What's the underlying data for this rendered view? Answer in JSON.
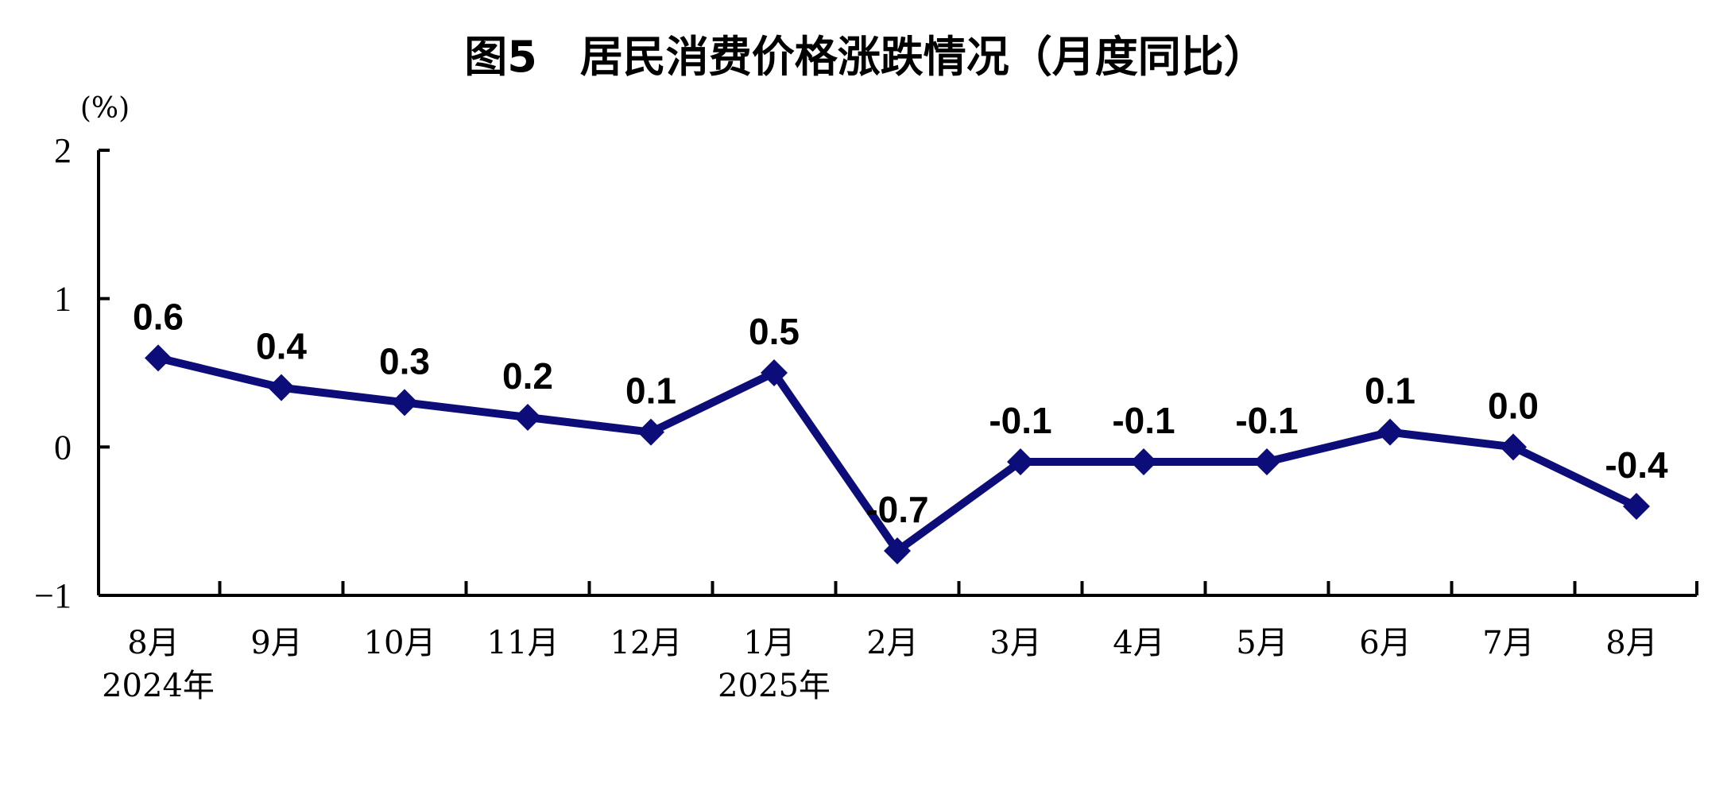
{
  "chart_data": {
    "type": "line",
    "title": "图5　居民消费价格涨跌情况（月度同比）",
    "unit_label": "(%)",
    "categories": [
      "8月",
      "9月",
      "10月",
      "11月",
      "12月",
      "1月",
      "2月",
      "3月",
      "4月",
      "5月",
      "6月",
      "7月",
      "8月"
    ],
    "year_labels": [
      "2024年",
      "",
      "",
      "",
      "",
      "2025年",
      "",
      "",
      "",
      "",
      "",
      "",
      ""
    ],
    "y_ticks": [
      "2",
      "1",
      "0",
      "−1"
    ],
    "ylim": [
      -1,
      2
    ],
    "grid": false,
    "legend": "none",
    "series": [
      {
        "values": [
          0.6,
          0.4,
          0.3,
          0.2,
          0.1,
          0.5,
          -0.7,
          -0.1,
          -0.1,
          -0.1,
          0.1,
          0.0,
          -0.4
        ],
        "labels": [
          "0.6",
          "0.4",
          "0.3",
          "0.2",
          "0.1",
          "0.5",
          "-0.7",
          "-0.1",
          "-0.1",
          "-0.1",
          "0.1",
          "0.0",
          "-0.4"
        ],
        "color": "#0d0d7a",
        "marker": "diamond"
      }
    ]
  }
}
